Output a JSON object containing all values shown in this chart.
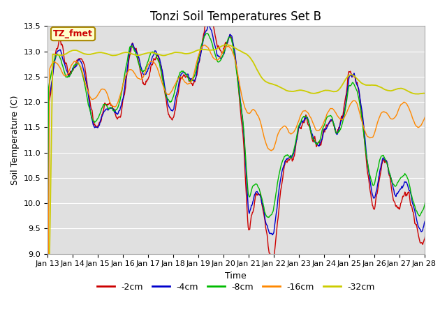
{
  "title": "Tonzi Soil Temperatures Set B",
  "xlabel": "Time",
  "ylabel": "Soil Temperature (C)",
  "ylim": [
    9.0,
    13.5
  ],
  "colors": {
    "-2cm": "#cc0000",
    "-4cm": "#0000cc",
    "-8cm": "#00bb00",
    "-16cm": "#ff8800",
    "-32cm": "#cccc00"
  },
  "legend_label": "TZ_fmet",
  "tick_labels": [
    "Jan 13",
    "Jan 14",
    "Jan 15",
    "Jan 16",
    "Jan 17",
    "Jan 18",
    "Jan 19",
    "Jan 20",
    "Jan 21",
    "Jan 22",
    "Jan 23",
    "Jan 24",
    "Jan 25",
    "Jan 26",
    "Jan 27",
    "Jan 28"
  ],
  "background_color": "#ffffff",
  "plot_bg": "#e0e0e0",
  "grid_color": "#ffffff",
  "title_fontsize": 12,
  "axis_fontsize": 9,
  "tick_fontsize": 8,
  "legend_fontsize": 9
}
